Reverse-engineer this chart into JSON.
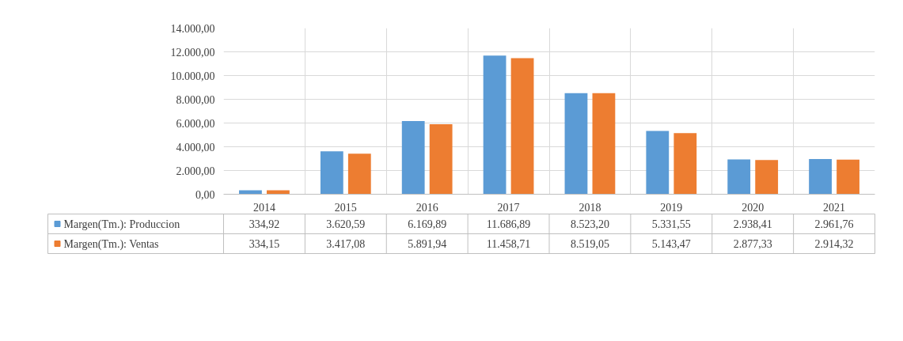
{
  "chart_data": {
    "type": "bar",
    "categories": [
      "2014",
      "2015",
      "2016",
      "2017",
      "2018",
      "2019",
      "2020",
      "2021"
    ],
    "series": [
      {
        "name": "Margen(Tm.): Produccion",
        "color": "#5b9bd5",
        "values": [
          334.92,
          3620.59,
          6169.89,
          11686.89,
          8523.2,
          5331.55,
          2938.41,
          2961.76
        ],
        "value_labels": [
          "334,92",
          "3.620,59",
          "6.169,89",
          "11.686,89",
          "8.523,20",
          "5.331,55",
          "2.938,41",
          "2.961,76"
        ]
      },
      {
        "name": "Margen(Tm.): Ventas",
        "color": "#ed7d31",
        "values": [
          334.15,
          3417.08,
          5891.94,
          11458.71,
          8519.05,
          5143.47,
          2877.33,
          2914.32
        ],
        "value_labels": [
          "334,15",
          "3.417,08",
          "5.891,94",
          "11.458,71",
          "8.519,05",
          "5.143,47",
          "2.877,33",
          "2.914,32"
        ]
      }
    ],
    "ylim": [
      0,
      14000
    ],
    "yticks": [
      {
        "value": 0,
        "label": "0,00"
      },
      {
        "value": 2000,
        "label": "2.000,00"
      },
      {
        "value": 4000,
        "label": "4.000,00"
      },
      {
        "value": 6000,
        "label": "6.000,00"
      },
      {
        "value": 8000,
        "label": "8.000,00"
      },
      {
        "value": 10000,
        "label": "10.000,00"
      },
      {
        "value": 12000,
        "label": "12.000,00"
      },
      {
        "value": 14000,
        "label": "14.000,00"
      }
    ],
    "grid": true,
    "legend": "bottom"
  }
}
